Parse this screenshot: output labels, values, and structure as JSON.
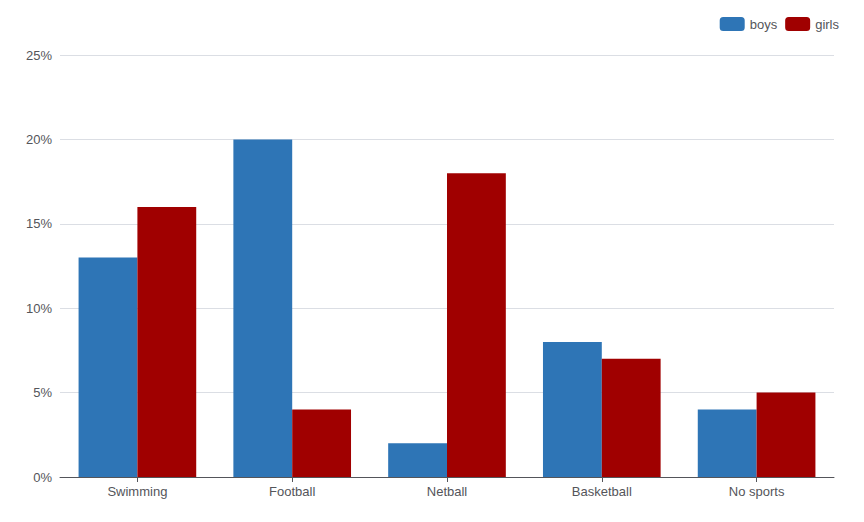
{
  "chart_data": {
    "type": "bar",
    "categories": [
      "Swimming",
      "Football",
      "Netball",
      "Basketball",
      "No sports"
    ],
    "series": [
      {
        "name": "boys",
        "color": "#2E75B6",
        "values": [
          13,
          20,
          2,
          8,
          4
        ]
      },
      {
        "name": "girls",
        "color": "#A00000",
        "values": [
          16,
          4,
          18,
          7,
          5
        ]
      }
    ],
    "ylim": [
      0,
      25
    ],
    "yticks": [
      {
        "value": 0,
        "label": "0%"
      },
      {
        "value": 5,
        "label": "5%"
      },
      {
        "value": 10,
        "label": "10%"
      },
      {
        "value": 15,
        "label": "15%"
      },
      {
        "value": 20,
        "label": "20%"
      },
      {
        "value": 25,
        "label": "25%"
      }
    ],
    "grid": true,
    "legend": "upper right"
  }
}
